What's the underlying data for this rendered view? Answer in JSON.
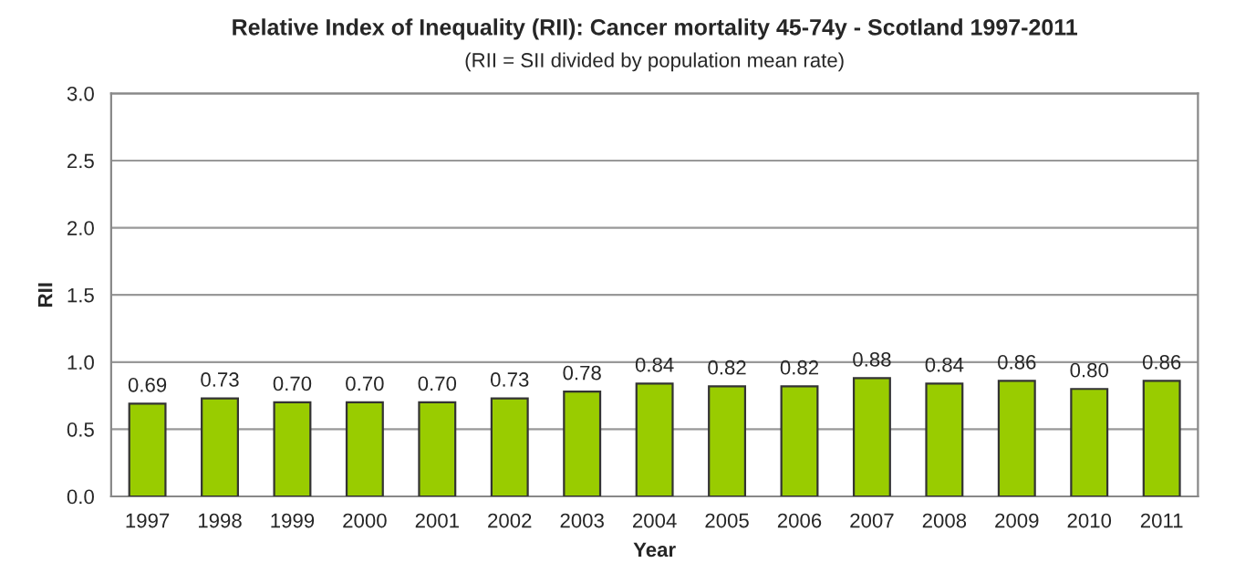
{
  "chart_data": {
    "type": "bar",
    "title": "Relative Index of Inequality (RII): Cancer mortality 45-74y - Scotland 1997-2011",
    "subtitle": "(RII = SII divided by population mean rate)",
    "xlabel": "Year",
    "ylabel": "RII",
    "categories": [
      "1997",
      "1998",
      "1999",
      "2000",
      "2001",
      "2002",
      "2003",
      "2004",
      "2005",
      "2006",
      "2007",
      "2008",
      "2009",
      "2010",
      "2011"
    ],
    "values": [
      0.69,
      0.73,
      0.7,
      0.7,
      0.7,
      0.73,
      0.78,
      0.84,
      0.82,
      0.82,
      0.88,
      0.84,
      0.86,
      0.8,
      0.86
    ],
    "value_labels": [
      "0.69",
      "0.73",
      "0.70",
      "0.70",
      "0.70",
      "0.73",
      "0.78",
      "0.84",
      "0.82",
      "0.82",
      "0.88",
      "0.84",
      "0.86",
      "0.80",
      "0.86"
    ],
    "color": "#99cc00",
    "ylim": [
      0,
      3
    ],
    "yticks": [
      {
        "value": 0,
        "label": "0.0"
      },
      {
        "value": 0.5,
        "label": "0.5"
      },
      {
        "value": 1,
        "label": "1.0"
      },
      {
        "value": 1.5,
        "label": "1.5"
      },
      {
        "value": 2,
        "label": "2.0"
      },
      {
        "value": 2.5,
        "label": "2.5"
      },
      {
        "value": 3,
        "label": "3.0"
      }
    ],
    "grid": "y",
    "legend": false
  }
}
